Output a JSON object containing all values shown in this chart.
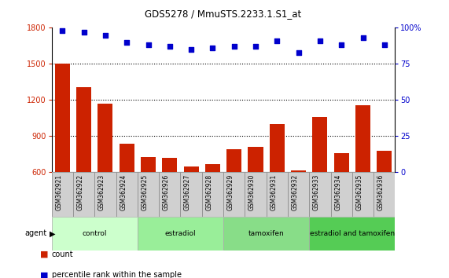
{
  "title": "GDS5278 / MmuSTS.2233.1.S1_at",
  "samples": [
    "GSM362921",
    "GSM362922",
    "GSM362923",
    "GSM362924",
    "GSM362925",
    "GSM362926",
    "GSM362927",
    "GSM362928",
    "GSM362929",
    "GSM362930",
    "GSM362931",
    "GSM362932",
    "GSM362933",
    "GSM362934",
    "GSM362935",
    "GSM362936"
  ],
  "counts": [
    1500,
    1310,
    1170,
    840,
    730,
    720,
    650,
    670,
    790,
    810,
    1000,
    615,
    1060,
    760,
    1160,
    780
  ],
  "percentile_ranks": [
    98,
    97,
    95,
    90,
    88,
    87,
    85,
    86,
    87,
    87,
    91,
    83,
    91,
    88,
    93,
    88
  ],
  "ylim_left": [
    600,
    1800
  ],
  "ylim_right": [
    0,
    100
  ],
  "yticks_left": [
    600,
    900,
    1200,
    1500,
    1800
  ],
  "yticks_right": [
    0,
    25,
    50,
    75,
    100
  ],
  "bar_color": "#cc2200",
  "dot_color": "#0000cc",
  "grid_color": "#000000",
  "agent_label": "agent",
  "groups": [
    {
      "label": "control",
      "start": 0,
      "end": 4,
      "color": "#ccffcc"
    },
    {
      "label": "estradiol",
      "start": 4,
      "end": 8,
      "color": "#99ee99"
    },
    {
      "label": "tamoxifen",
      "start": 8,
      "end": 12,
      "color": "#88dd88"
    },
    {
      "label": "estradiol and tamoxifen",
      "start": 12,
      "end": 16,
      "color": "#55cc55"
    }
  ],
  "legend_count_label": "count",
  "legend_pct_label": "percentile rank within the sample",
  "background_color": "#ffffff",
  "plot_bg_color": "#ffffff",
  "tick_area_color": "#d0d0d0"
}
